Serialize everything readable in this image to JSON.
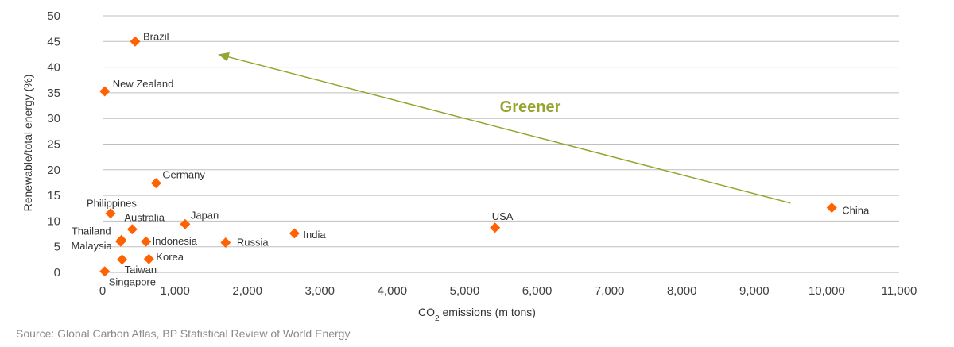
{
  "chart_data": {
    "type": "scatter",
    "xlabel_prefix": "CO",
    "xlabel_sub": "2",
    "xlabel_suffix": " emissions  (m  tons)",
    "ylabel": "Renewable/total energy (%)",
    "xlim": [
      0,
      11000
    ],
    "ylim": [
      0,
      50
    ],
    "xticks": [
      0,
      1000,
      2000,
      3000,
      4000,
      5000,
      6000,
      7000,
      8000,
      9000,
      10000,
      11000
    ],
    "xtick_labels": [
      "0",
      "1,000",
      "2,000",
      "3,000",
      "4,000",
      "5,000",
      "6,000",
      "7,000",
      "8,000",
      "9,000",
      "10,000",
      "11,000"
    ],
    "yticks": [
      0,
      5,
      10,
      15,
      20,
      25,
      30,
      35,
      40,
      45,
      50
    ],
    "ytick_labels": [
      "0",
      "5",
      "10",
      "15",
      "20",
      "25",
      "30",
      "35",
      "40",
      "45",
      "50"
    ],
    "grid": "horizontal",
    "marker_color": "#ff6200",
    "grid_color": "#bfbfbf",
    "points": [
      {
        "name": "Brazil",
        "x": 450,
        "y": 45
      },
      {
        "name": "New Zealand",
        "x": 30,
        "y": 35.3
      },
      {
        "name": "Germany",
        "x": 740,
        "y": 17.4
      },
      {
        "name": "Philippines",
        "x": 110,
        "y": 11.5
      },
      {
        "name": "Australia",
        "x": 410,
        "y": 8.4
      },
      {
        "name": "Japan",
        "x": 1140,
        "y": 9.4
      },
      {
        "name": "Thailand",
        "x": 260,
        "y": 6.3
      },
      {
        "name": "Malaysia",
        "x": 250,
        "y": 6.0
      },
      {
        "name": "Indonesia",
        "x": 600,
        "y": 6.0
      },
      {
        "name": "Russia",
        "x": 1700,
        "y": 5.8
      },
      {
        "name": "India",
        "x": 2650,
        "y": 7.6
      },
      {
        "name": "USA",
        "x": 5420,
        "y": 8.7
      },
      {
        "name": "China",
        "x": 10070,
        "y": 12.6
      },
      {
        "name": "Korea",
        "x": 640,
        "y": 2.6
      },
      {
        "name": "Taiwan",
        "x": 270,
        "y": 2.5
      },
      {
        "name": "Singapore",
        "x": 30,
        "y": 0.2
      }
    ],
    "annotation": {
      "text": "Greener",
      "color": "#96a530",
      "arrow_from": [
        9500,
        13.5
      ],
      "arrow_to": [
        1600,
        42.5
      ]
    }
  },
  "source": "Source: Global Carbon Atlas, BP Statistical Review of World Energy"
}
